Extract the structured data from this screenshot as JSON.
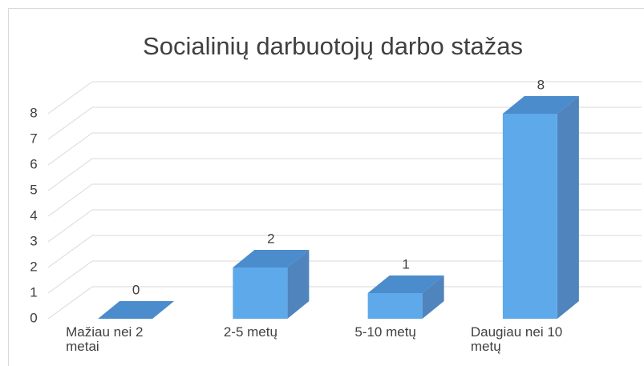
{
  "chart_data": {
    "type": "bar3d",
    "title": "Socialinių darbuotojų darbo stažas",
    "categories": [
      "Mažiau nei 2 metai",
      "2-5 metų",
      "5-10 metų",
      "Daugiau nei 10 metų"
    ],
    "values": [
      0,
      2,
      1,
      8
    ],
    "color": "#5ea9ea",
    "ylim": [
      0,
      8
    ],
    "yticks": [
      0,
      1,
      2,
      3,
      4,
      5,
      6,
      7,
      8
    ],
    "grid": true
  }
}
